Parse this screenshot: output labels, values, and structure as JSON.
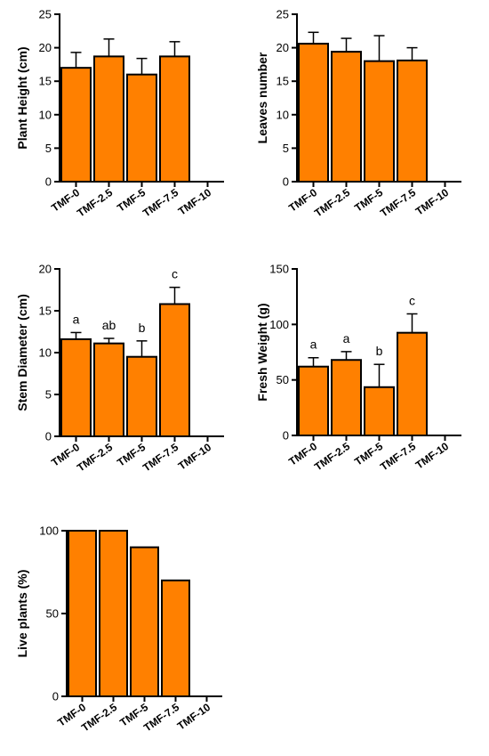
{
  "chart_data": [
    {
      "type": "bar",
      "ylabel": "Plant Height (cm)",
      "categories": [
        "TMF-0",
        "TMF-2.5",
        "TMF-5",
        "TMF-7.5",
        "TMF-10"
      ],
      "values": [
        17,
        18.7,
        16,
        18.7,
        null
      ],
      "errors": [
        2.3,
        2.6,
        2.4,
        2.2,
        null
      ],
      "ylim": [
        0,
        25
      ],
      "yticks": [
        0,
        5,
        10,
        15,
        20,
        25
      ],
      "letters": [],
      "bar_color": "#FF8000"
    },
    {
      "type": "bar",
      "ylabel": "Leaves number",
      "categories": [
        "TMF-0",
        "TMF-2.5",
        "TMF-5",
        "TMF-7.5",
        "TMF-10"
      ],
      "values": [
        20.6,
        19.4,
        18,
        18.1,
        null
      ],
      "errors": [
        1.7,
        2.0,
        3.8,
        1.9,
        null
      ],
      "ylim": [
        0,
        25
      ],
      "yticks": [
        0,
        5,
        10,
        15,
        20,
        25
      ],
      "letters": [],
      "bar_color": "#FF8000"
    },
    {
      "type": "bar",
      "ylabel": "Stem Diameter (cm)",
      "categories": [
        "TMF-0",
        "TMF-2.5",
        "TMF-5",
        "TMF-7.5",
        "TMF-10"
      ],
      "values": [
        11.6,
        11.1,
        9.5,
        15.8,
        null
      ],
      "errors": [
        0.8,
        0.6,
        1.9,
        2.0,
        null
      ],
      "ylim": [
        0,
        20
      ],
      "yticks": [
        0,
        5,
        10,
        15,
        20
      ],
      "letters": [
        "a",
        "ab",
        "b",
        "c"
      ],
      "bar_color": "#FF8000"
    },
    {
      "type": "bar",
      "ylabel": "Fresh Weight (g)",
      "categories": [
        "TMF-0",
        "TMF-2.5",
        "TMF-5",
        "TMF-7.5",
        "TMF-10"
      ],
      "values": [
        62,
        68,
        43.5,
        92.5,
        null
      ],
      "errors": [
        8,
        7.5,
        20.5,
        17,
        null
      ],
      "ylim": [
        0,
        150
      ],
      "yticks": [
        0,
        50,
        100,
        150
      ],
      "letters": [
        "a",
        "a",
        "b",
        "c"
      ],
      "bar_color": "#FF8000"
    },
    {
      "type": "bar",
      "ylabel": "Live plants (%)",
      "categories": [
        "TMF-0",
        "TMF-2.5",
        "TMF-5",
        "TMF-7.5",
        "TMF-10"
      ],
      "values": [
        100,
        100,
        90,
        70,
        null
      ],
      "errors": [
        null,
        null,
        null,
        null,
        null
      ],
      "ylim": [
        0,
        100
      ],
      "yticks": [
        0,
        50,
        100
      ],
      "letters": [],
      "bar_color": "#FF8000"
    }
  ]
}
